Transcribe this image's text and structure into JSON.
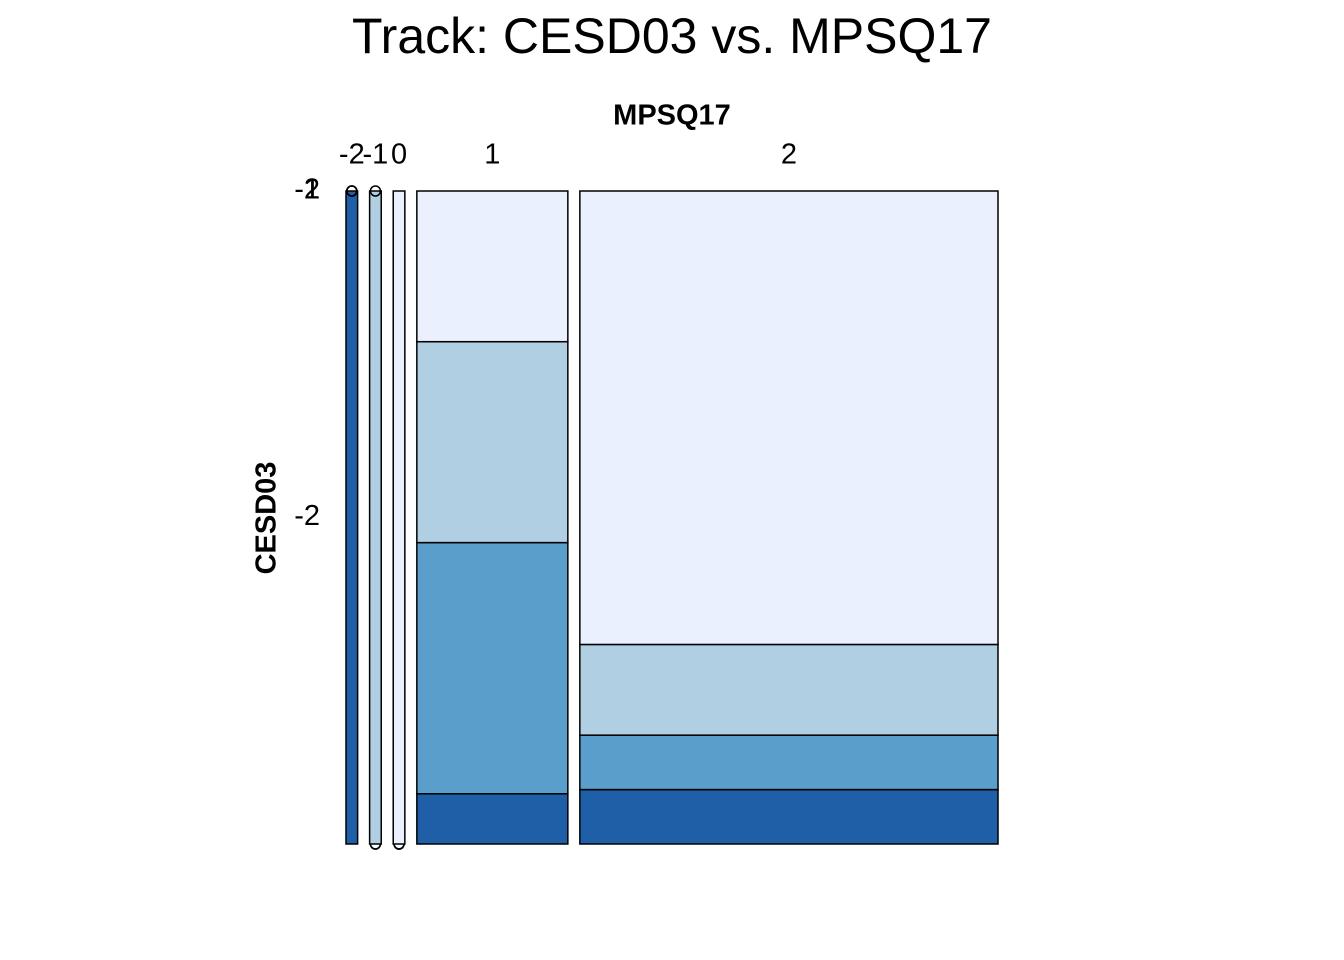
{
  "chart_data": {
    "type": "mosaic",
    "title": "Track: CESD03 vs. MPSQ17",
    "x_label": "MPSQ17",
    "y_label": "CESD03",
    "categories": [
      "-2",
      "-1",
      "0",
      "1",
      "2"
    ],
    "series": [
      {
        "name": "-2",
        "color": "#1f5fa8",
        "values": [
          1,
          0,
          0,
          1,
          3
        ]
      },
      {
        "name": "-1",
        "color": "#5a9fcc",
        "values": [
          0,
          0,
          0,
          5,
          3
        ]
      },
      {
        "name": "1",
        "color": "#b0cfe3",
        "values": [
          0,
          1,
          0,
          4,
          5
        ]
      },
      {
        "name": "2",
        "color": "#eaf0fd",
        "values": [
          0,
          0,
          1,
          3,
          25
        ]
      }
    ]
  }
}
